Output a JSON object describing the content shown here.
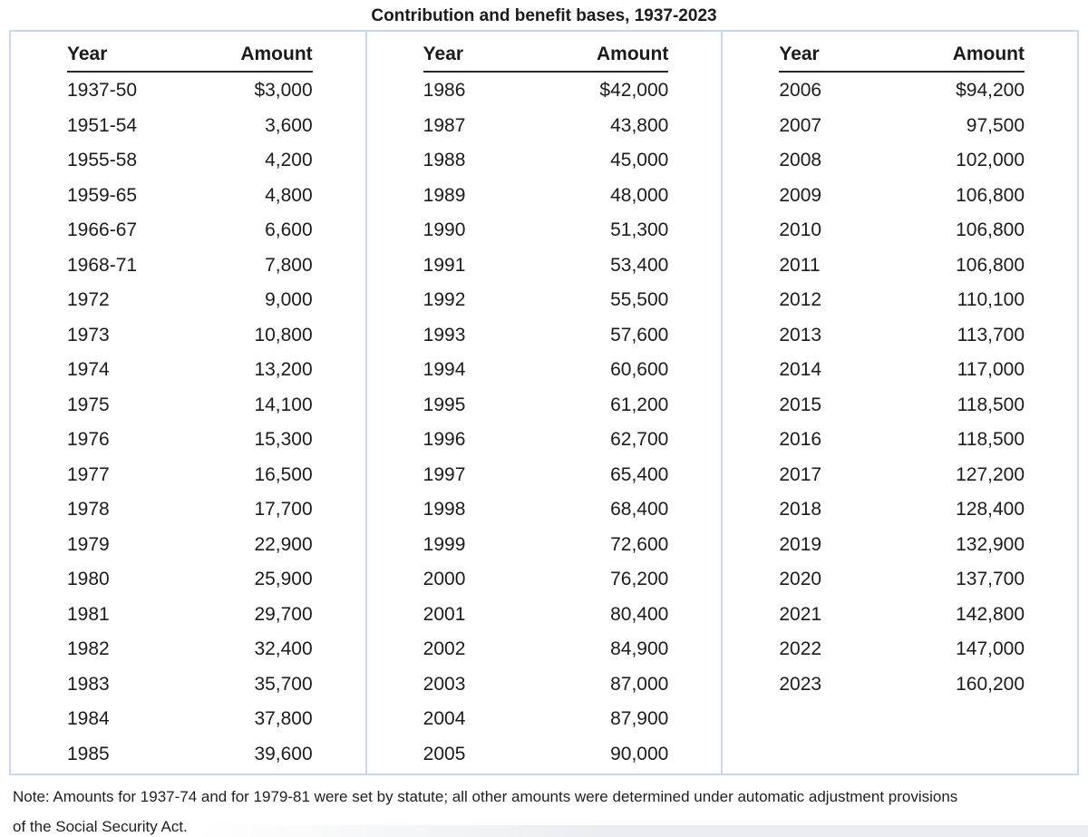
{
  "title": "Contribution and benefit bases, 1937-2023",
  "chart_data": {
    "type": "table",
    "title": "Contribution and benefit bases, 1937-2023",
    "column_headers": [
      "Year",
      "Amount"
    ],
    "panels": [
      {
        "rows": [
          [
            "1937-50",
            "$3,000"
          ],
          [
            "1951-54",
            "3,600"
          ],
          [
            "1955-58",
            "4,200"
          ],
          [
            "1959-65",
            "4,800"
          ],
          [
            "1966-67",
            "6,600"
          ],
          [
            "1968-71",
            "7,800"
          ],
          [
            "1972",
            "9,000"
          ],
          [
            "1973",
            "10,800"
          ],
          [
            "1974",
            "13,200"
          ],
          [
            "1975",
            "14,100"
          ],
          [
            "1976",
            "15,300"
          ],
          [
            "1977",
            "16,500"
          ],
          [
            "1978",
            "17,700"
          ],
          [
            "1979",
            "22,900"
          ],
          [
            "1980",
            "25,900"
          ],
          [
            "1981",
            "29,700"
          ],
          [
            "1982",
            "32,400"
          ],
          [
            "1983",
            "35,700"
          ],
          [
            "1984",
            "37,800"
          ],
          [
            "1985",
            "39,600"
          ]
        ]
      },
      {
        "rows": [
          [
            "1986",
            "$42,000"
          ],
          [
            "1987",
            "43,800"
          ],
          [
            "1988",
            "45,000"
          ],
          [
            "1989",
            "48,000"
          ],
          [
            "1990",
            "51,300"
          ],
          [
            "1991",
            "53,400"
          ],
          [
            "1992",
            "55,500"
          ],
          [
            "1993",
            "57,600"
          ],
          [
            "1994",
            "60,600"
          ],
          [
            "1995",
            "61,200"
          ],
          [
            "1996",
            "62,700"
          ],
          [
            "1997",
            "65,400"
          ],
          [
            "1998",
            "68,400"
          ],
          [
            "1999",
            "72,600"
          ],
          [
            "2000",
            "76,200"
          ],
          [
            "2001",
            "80,400"
          ],
          [
            "2002",
            "84,900"
          ],
          [
            "2003",
            "87,000"
          ],
          [
            "2004",
            "87,900"
          ],
          [
            "2005",
            "90,000"
          ]
        ]
      },
      {
        "rows": [
          [
            "2006",
            "$94,200"
          ],
          [
            "2007",
            "97,500"
          ],
          [
            "2008",
            "102,000"
          ],
          [
            "2009",
            "106,800"
          ],
          [
            "2010",
            "106,800"
          ],
          [
            "2011",
            "106,800"
          ],
          [
            "2012",
            "110,100"
          ],
          [
            "2013",
            "113,700"
          ],
          [
            "2014",
            "117,000"
          ],
          [
            "2015",
            "118,500"
          ],
          [
            "2016",
            "118,500"
          ],
          [
            "2017",
            "127,200"
          ],
          [
            "2018",
            "128,400"
          ],
          [
            "2019",
            "132,900"
          ],
          [
            "2020",
            "137,700"
          ],
          [
            "2021",
            "142,800"
          ],
          [
            "2022",
            "147,000"
          ],
          [
            "2023",
            "160,200"
          ]
        ]
      }
    ],
    "note": "Note: Amounts for 1937-74 and for 1979-81 were set by statute; all other amounts were determined under automatic adjustment provisions of the Social Security Act."
  },
  "note": {
    "line1": "Note: Amounts for 1937-74 and for 1979-81 were set by statute; all other amounts were determined under automatic adjustment provisions",
    "line2": "of the Social Security Act."
  },
  "colors": {
    "card_border": "#c8d8ea",
    "header_rule": "#2a2a2c",
    "text": "#1c1c1e",
    "background": "#ffffff"
  }
}
